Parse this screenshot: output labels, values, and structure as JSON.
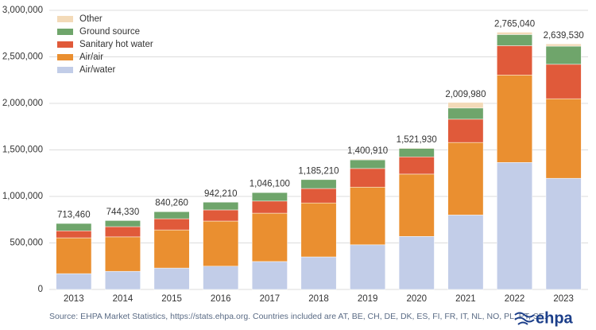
{
  "chart_data": {
    "type": "stacked_bar",
    "categories": [
      "2013",
      "2014",
      "2015",
      "2016",
      "2017",
      "2018",
      "2019",
      "2020",
      "2021",
      "2022",
      "2023"
    ],
    "series": [
      {
        "name": "Air/water",
        "color": "#c2cde8",
        "values": [
          170000,
          195000,
          230000,
          250000,
          300000,
          350000,
          480000,
          570000,
          800000,
          1365000,
          1195000
        ]
      },
      {
        "name": "Air/air",
        "color": "#ea8f30",
        "values": [
          385000,
          370000,
          410000,
          485000,
          520000,
          580000,
          620000,
          670000,
          780000,
          940000,
          855000
        ]
      },
      {
        "name": "Sanitary hot water",
        "color": "#e05a3a",
        "values": [
          75000,
          110000,
          120000,
          120000,
          130000,
          155000,
          200000,
          185000,
          250000,
          315000,
          370000
        ]
      },
      {
        "name": "Ground source",
        "color": "#6fa56b",
        "values": [
          80000,
          66000,
          76000,
          83000,
          92000,
          96000,
          93000,
          90000,
          120000,
          120000,
          195000
        ]
      },
      {
        "name": "Other",
        "color": "#f3dab8",
        "values": [
          3460,
          3330,
          4260,
          4210,
          4100,
          4210,
          7910,
          6930,
          59980,
          25040,
          24530
        ]
      }
    ],
    "totals": {
      "values": [
        713460,
        744330,
        840260,
        942210,
        1046100,
        1185210,
        1400910,
        1521930,
        2009980,
        2765040,
        2639530
      ],
      "value_labels": [
        "713,460",
        "744,330",
        "840,260",
        "942,210",
        "1,046,100",
        "1,185,210",
        "1,400,910",
        "1,521,930",
        "2,009,980",
        "2,765,040",
        "2,639,530"
      ]
    },
    "ylim": [
      0,
      3000000
    ],
    "yticks": [
      0,
      {
        "value": 500000,
        "label": "500,000"
      },
      {
        "value": 1000000,
        "label": "1,000,000"
      },
      {
        "value": 1500000,
        "label": "1,500,000"
      },
      {
        "value": 2000000,
        "label": "2,000,000"
      },
      {
        "value": 2500000,
        "label": "2,500,000"
      },
      {
        "value": 3000000,
        "label": "3,000,000"
      }
    ],
    "grid": true,
    "legend": "top-left",
    "source": "Source: EHPA Market Statistics, https://stats.ehpa.org. Countries included are AT, BE, CH, DE, DK, ES, FI, FR, IT, NL, NO, PL, PT, SE.",
    "logo": "ehpa"
  }
}
